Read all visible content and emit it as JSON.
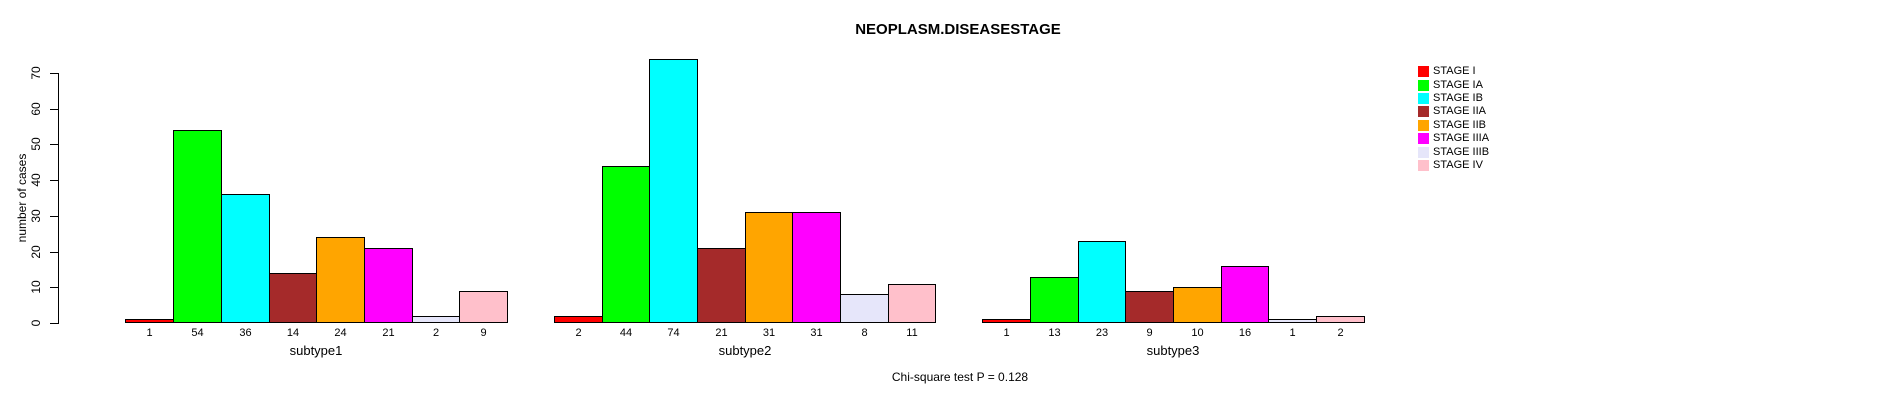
{
  "chart_data": {
    "type": "bar",
    "title": "NEOPLASM.DISEASESTAGE",
    "ylabel": "number of cases",
    "footer": "Chi-square test P = 0.128",
    "ylim": [
      0,
      74
    ],
    "yticks": [
      0,
      10,
      20,
      30,
      40,
      50,
      60,
      70
    ],
    "grid": false,
    "legend_position": "right",
    "bar_value_labels": true,
    "categories": [
      "subtype1",
      "subtype2",
      "subtype3"
    ],
    "series": [
      {
        "name": "STAGE I",
        "color": "#FF0000",
        "values": [
          1,
          2,
          1
        ]
      },
      {
        "name": "STAGE IA",
        "color": "#00FF00",
        "values": [
          54,
          44,
          13
        ]
      },
      {
        "name": "STAGE IB",
        "color": "#00FFFF",
        "values": [
          36,
          74,
          23
        ]
      },
      {
        "name": "STAGE IIA",
        "color": "#A52A2A",
        "values": [
          14,
          21,
          9
        ]
      },
      {
        "name": "STAGE IIB",
        "color": "#FFA500",
        "values": [
          24,
          31,
          10
        ]
      },
      {
        "name": "STAGE IIIA",
        "color": "#FF00FF",
        "values": [
          21,
          31,
          16
        ]
      },
      {
        "name": "STAGE IIIB",
        "color": "#E6E6FA",
        "values": [
          2,
          8,
          1
        ]
      },
      {
        "name": "STAGE IV",
        "color": "#FFC0CB",
        "values": [
          9,
          11,
          2
        ]
      }
    ]
  }
}
